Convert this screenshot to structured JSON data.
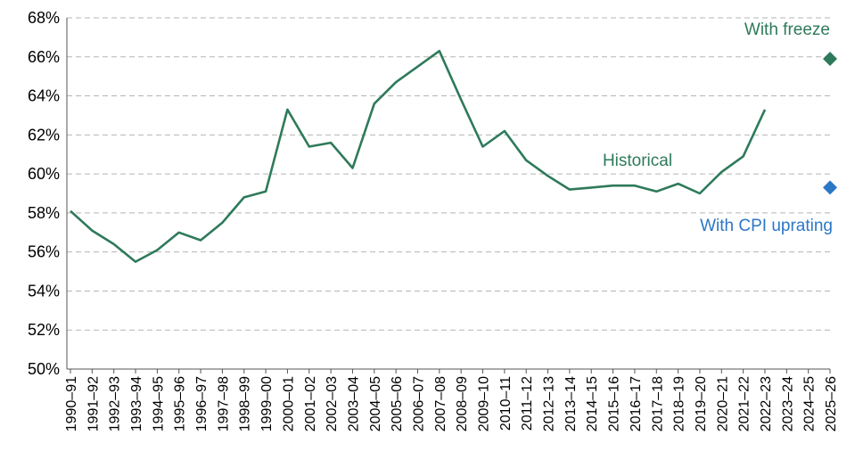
{
  "chart_data": {
    "type": "line",
    "y_axis": {
      "min": 50,
      "max": 68,
      "step": 2,
      "tick_labels": [
        "50%",
        "52%",
        "54%",
        "56%",
        "58%",
        "60%",
        "62%",
        "64%",
        "66%",
        "68%"
      ]
    },
    "grid": "horizontal dashed",
    "categories": [
      "1990–91",
      "1991–92",
      "1992–93",
      "1993–94",
      "1994–95",
      "1995–96",
      "1996–97",
      "1997–98",
      "1998–99",
      "1999–00",
      "2000–01",
      "2001–02",
      "2002–03",
      "2003–04",
      "2004–05",
      "2005–06",
      "2006–07",
      "2007–08",
      "2008–09",
      "2009–10",
      "2010–11",
      "2011–12",
      "2012–13",
      "2013–14",
      "2014–15",
      "2015–16",
      "2016–17",
      "2017–18",
      "2018–19",
      "2019–20",
      "2020–21",
      "2021–22",
      "2022–23",
      "2023–24",
      "2024–25",
      "2025–26"
    ],
    "series": [
      {
        "name": "Historical",
        "color": "#2e7a5a",
        "values": [
          58.1,
          57.1,
          56.4,
          55.5,
          56.1,
          57.0,
          56.6,
          57.5,
          58.8,
          59.1,
          63.3,
          61.4,
          61.6,
          60.3,
          63.6,
          64.7,
          65.5,
          66.3,
          63.8,
          61.4,
          62.2,
          60.7,
          59.9,
          59.2,
          59.3,
          59.4,
          59.4,
          59.1,
          59.5,
          59.0,
          60.1,
          60.9,
          63.3,
          null,
          null,
          null
        ]
      }
    ],
    "markers": [
      {
        "name": "With freeze",
        "category": "2025–26",
        "value": 65.9,
        "color": "#2e7a5a",
        "shape": "diamond"
      },
      {
        "name": "With CPI uprating",
        "category": "2025–26",
        "value": 59.3,
        "color": "#2b77c6",
        "shape": "diamond"
      }
    ],
    "annotations": [
      {
        "text": "With freeze",
        "color": "#2e7a5a"
      },
      {
        "text": "Historical",
        "color": "#2e7a5a"
      },
      {
        "text": "With CPI uprating",
        "color": "#2b77c6"
      }
    ]
  }
}
